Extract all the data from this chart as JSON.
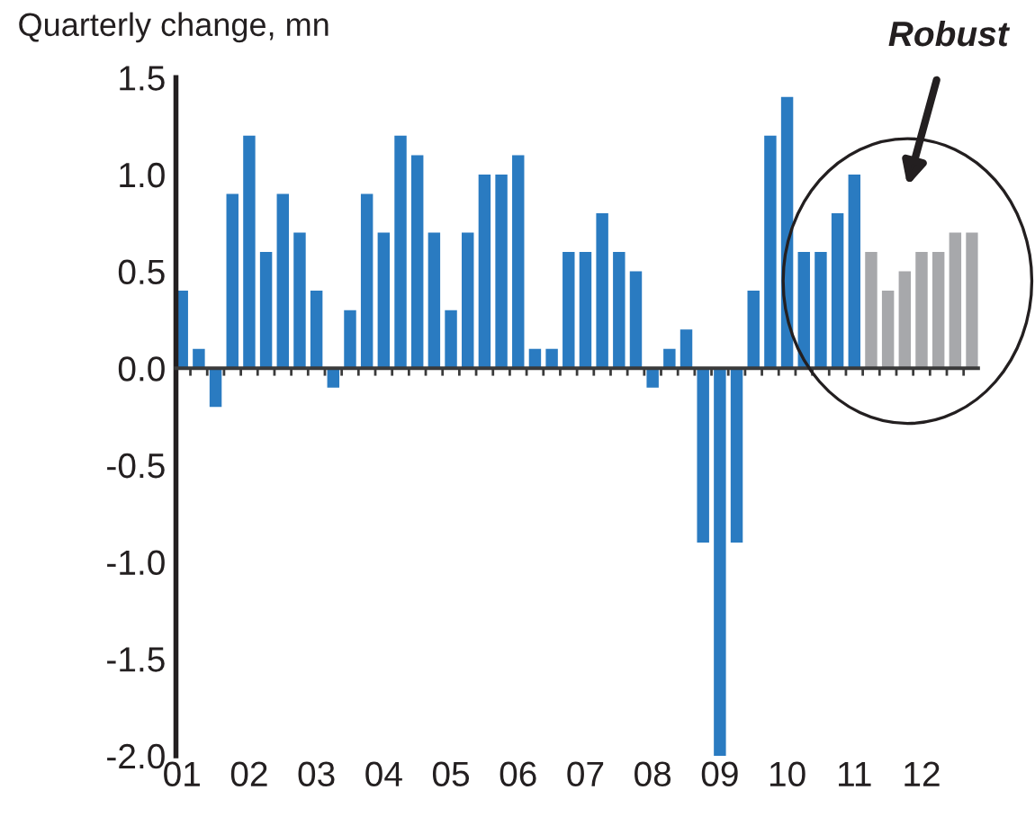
{
  "chart_data": {
    "type": "bar",
    "title": "Quarterly change, mn",
    "categories": [
      "01",
      null,
      null,
      null,
      "02",
      null,
      null,
      null,
      "03",
      null,
      null,
      null,
      "04",
      null,
      null,
      null,
      "05",
      null,
      null,
      null,
      "06",
      null,
      null,
      null,
      "07",
      null,
      null,
      null,
      "08",
      null,
      null,
      null,
      "09",
      null,
      null,
      null,
      "10",
      null,
      null,
      null,
      "11",
      null,
      null,
      null,
      "12",
      null,
      null,
      null
    ],
    "values": [
      0.4,
      0.1,
      -0.2,
      0.9,
      1.2,
      0.6,
      0.9,
      0.7,
      0.4,
      -0.1,
      0.3,
      0.9,
      0.7,
      1.2,
      1.1,
      0.7,
      0.3,
      0.7,
      1.0,
      1.0,
      1.1,
      0.1,
      0.1,
      0.6,
      0.6,
      0.8,
      0.6,
      0.5,
      -0.1,
      0.1,
      0.2,
      -0.9,
      -2.0,
      -0.9,
      0.4,
      1.2,
      1.4,
      0.6,
      0.6,
      0.8,
      1.0,
      0.6,
      0.4,
      0.5,
      0.6,
      0.6,
      0.7,
      0.7
    ],
    "colors": [
      "#2a7bc1",
      "#2a7bc1",
      "#2a7bc1",
      "#2a7bc1",
      "#2a7bc1",
      "#2a7bc1",
      "#2a7bc1",
      "#2a7bc1",
      "#2a7bc1",
      "#2a7bc1",
      "#2a7bc1",
      "#2a7bc1",
      "#2a7bc1",
      "#2a7bc1",
      "#2a7bc1",
      "#2a7bc1",
      "#2a7bc1",
      "#2a7bc1",
      "#2a7bc1",
      "#2a7bc1",
      "#2a7bc1",
      "#2a7bc1",
      "#2a7bc1",
      "#2a7bc1",
      "#2a7bc1",
      "#2a7bc1",
      "#2a7bc1",
      "#2a7bc1",
      "#2a7bc1",
      "#2a7bc1",
      "#2a7bc1",
      "#2a7bc1",
      "#2a7bc1",
      "#2a7bc1",
      "#2a7bc1",
      "#2a7bc1",
      "#2a7bc1",
      "#2a7bc1",
      "#2a7bc1",
      "#2a7bc1",
      "#2a7bc1",
      "#a7a8ab",
      "#a7a8ab",
      "#a7a8ab",
      "#a7a8ab",
      "#a7a8ab",
      "#a7a8ab",
      "#a7a8ab"
    ],
    "ylim": [
      -2.0,
      1.5
    ],
    "yticks": [
      {
        "value": -2.0,
        "label": "-2.0"
      },
      {
        "value": -1.5,
        "label": "-1.5"
      },
      {
        "value": -1.0,
        "label": "-1.0"
      },
      {
        "value": -0.5,
        "label": "-0.5"
      },
      {
        "value": 0.0,
        "label": "0.0"
      },
      {
        "value": 0.5,
        "label": "0.5"
      },
      {
        "value": 1.0,
        "label": "1.0"
      },
      {
        "value": 1.5,
        "label": "1.5"
      }
    ],
    "annotations": [
      "Robust"
    ]
  }
}
